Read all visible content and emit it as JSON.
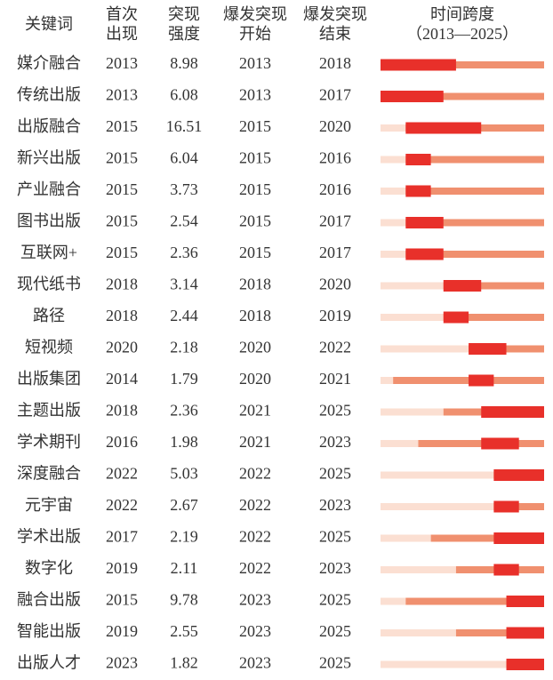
{
  "table": {
    "columns": [
      [
        "关键词"
      ],
      [
        "首次",
        "出现"
      ],
      [
        "突现",
        "强度"
      ],
      [
        "爆发突现",
        "开始"
      ],
      [
        "爆发突现",
        "结束"
      ],
      [
        "时间跨度",
        "（2013—2025）"
      ]
    ],
    "timeline_range": [
      2013,
      2025
    ],
    "rows": [
      [
        "媒介融合",
        2013,
        8.98,
        2013,
        2018
      ],
      [
        "传统出版",
        2013,
        6.08,
        2013,
        2017
      ],
      [
        "出版融合",
        2015,
        16.51,
        2015,
        2020
      ],
      [
        "新兴出版",
        2015,
        6.04,
        2015,
        2016
      ],
      [
        "产业融合",
        2015,
        3.73,
        2015,
        2016
      ],
      [
        "图书出版",
        2015,
        2.54,
        2015,
        2017
      ],
      [
        "互联网+",
        2015,
        2.36,
        2015,
        2017
      ],
      [
        "现代纸书",
        2018,
        3.14,
        2018,
        2020
      ],
      [
        "路径",
        2018,
        2.44,
        2018,
        2019
      ],
      [
        "短视频",
        2020,
        2.18,
        2020,
        2022
      ],
      [
        "出版集团",
        2014,
        1.79,
        2020,
        2021
      ],
      [
        "主题出版",
        2018,
        2.36,
        2021,
        2025
      ],
      [
        "学术期刊",
        2016,
        1.98,
        2021,
        2023
      ],
      [
        "深度融合",
        2022,
        5.03,
        2022,
        2025
      ],
      [
        "元宇宙",
        2022,
        2.67,
        2022,
        2023
      ],
      [
        "学术出版",
        2017,
        2.19,
        2022,
        2025
      ],
      [
        "数字化",
        2019,
        2.11,
        2022,
        2023
      ],
      [
        "融合出版",
        2015,
        9.78,
        2023,
        2025
      ],
      [
        "智能出版",
        2019,
        2.55,
        2023,
        2025
      ],
      [
        "出版人才",
        2023,
        1.82,
        2023,
        2025
      ]
    ]
  }
}
